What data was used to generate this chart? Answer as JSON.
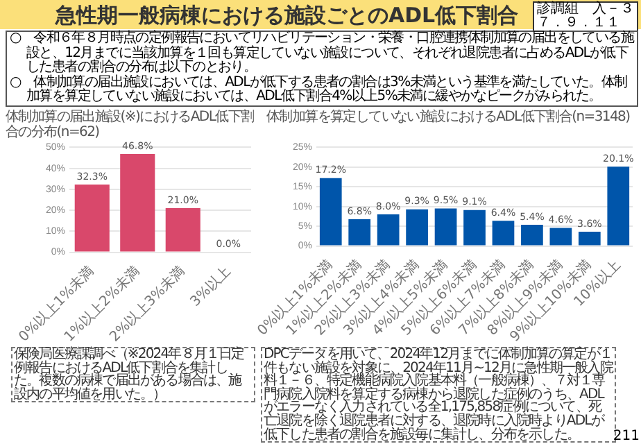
{
  "chart_data": [
    {
      "type": "bar",
      "title": "体制加算の届出施設(※)におけるADL低下割合の分布(n=62)",
      "categories": [
        "0%以上1%未満",
        "1%以上2%未満",
        "2%以上3%未満",
        "3%以上"
      ],
      "values": [
        32.3,
        46.8,
        21.0,
        0.0
      ],
      "value_labels": [
        "32.3%",
        "46.8%",
        "21.0%",
        "0.0%"
      ],
      "color": "#d9486b",
      "ylim": [
        0,
        50
      ],
      "yticks": [
        {
          "value": 0,
          "label": "0%"
        },
        {
          "value": 10,
          "label": "10%"
        },
        {
          "value": 20,
          "label": "20%"
        },
        {
          "value": 30,
          "label": "30%"
        },
        {
          "value": 40,
          "label": "40%"
        },
        {
          "value": 50,
          "label": "50%"
        }
      ],
      "grid": "y",
      "annotations": [
        "急性期一般病棟における施設ごとのADL低下割合",
        "診調組　入－３",
        "７．９．１１",
        "○　令和６年８月時点の定例報告においてリハビリテーション・栄養・口腔連携体制加算の届出をしている施設と、12月までに当該加算を１回も算定していない施設について、それぞれ退院患者に占めるADLが低下した患者の割合の分布は以下のとおり。",
        "○　体制加算の届出施設においては、ADLが低下する患者の割合は3%未満という基準を満たしていた。体制加算を算定していない施設においては、ADL低下割合4%以上5%未満に緩やかなピークがみられた。",
        "保険局医療課調べ（※2024年８月１日定例報告におけるADL低下割合を集計した。複数の病棟で届出がある場合は、施設内の平均値を用いた。）"
      ]
    },
    {
      "type": "bar",
      "title": "体制加算を算定していない施設におけるADL低下割合(n=3148)",
      "categories": [
        "0%以上1%未満",
        "1%以上2%未満",
        "2%以上3%未満",
        "3%以上4%未満",
        "4%以上5%未満",
        "5%以上6%未満",
        "6%以上7%未満",
        "7%以上8%未満",
        "8%以上9%未満",
        "9%以上10%未満",
        "10%以上"
      ],
      "values": [
        17.2,
        6.8,
        8.0,
        9.3,
        9.5,
        9.1,
        6.4,
        5.4,
        4.6,
        3.6,
        20.1
      ],
      "value_labels": [
        "17.2%",
        "6.8%",
        "8.0%",
        "9.3%",
        "9.5%",
        "9.1%",
        "6.4%",
        "5.4%",
        "4.6%",
        "3.6%",
        "20.1%"
      ],
      "color": "#0055aa",
      "ylim": [
        0,
        25
      ],
      "yticks": [
        {
          "value": 0,
          "label": "0%"
        },
        {
          "value": 5,
          "label": "5%"
        },
        {
          "value": 10,
          "label": "10%"
        },
        {
          "value": 15,
          "label": "15%"
        },
        {
          "value": 20,
          "label": "20%"
        },
        {
          "value": 25,
          "label": "25%"
        }
      ],
      "grid": "y",
      "annotations": [
        "DPCデータを用いて、2024年12月までに体制加算の算定が１件もない施設を対象に、2024年11月~12月に急性期一般入院料１－６、特定機能病院入院基本料（一般病棟）、７対１専門病院入院料を算定する病棟から退院した症例のうち、ADLがエラーなく入力されている全1,175,858症例について、死亡退院を除く退院患者に対する、退院時に入院時よりADLが低下した患者の割合を施設毎に集計し、分布を示した。",
        "211"
      ]
    }
  ]
}
